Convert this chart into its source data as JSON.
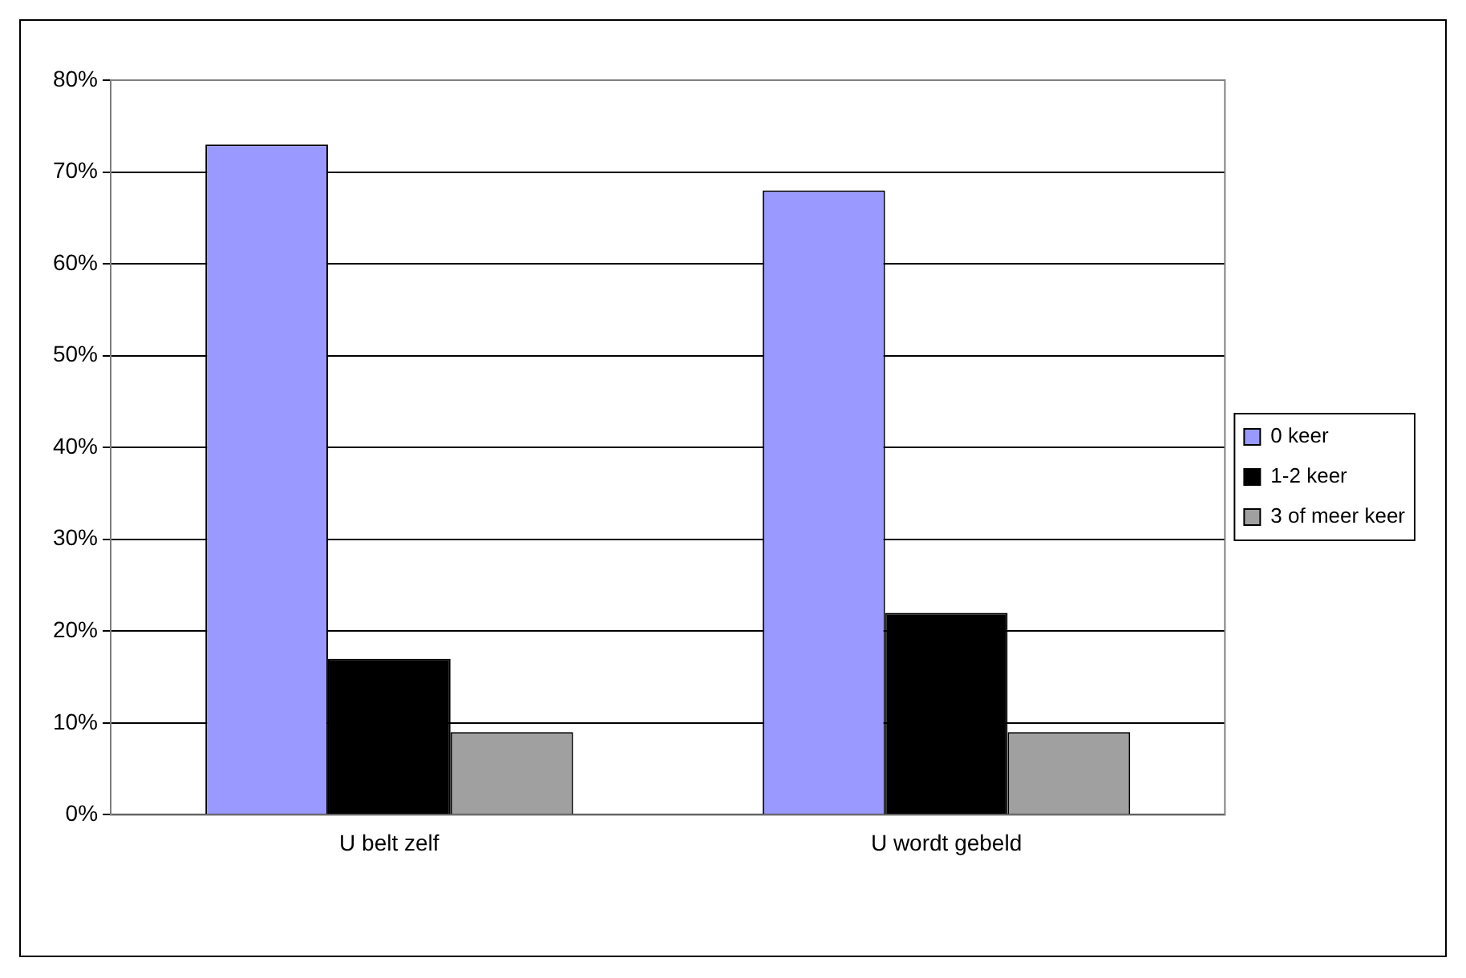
{
  "chart_data": {
    "type": "bar",
    "categories": [
      "U belt zelf",
      "U wordt gebeld"
    ],
    "series": [
      {
        "name": "0 keer",
        "color": "#9999ff",
        "values": [
          73,
          68
        ]
      },
      {
        "name": "1-2 keer",
        "color": "#000000",
        "values": [
          17,
          22
        ]
      },
      {
        "name": "3 of meer keer",
        "color": "#a0a0a0",
        "values": [
          9,
          9
        ]
      }
    ],
    "ylim": [
      0,
      80
    ],
    "yticks": [
      {
        "value": 0,
        "label": "0%"
      },
      {
        "value": 10,
        "label": "10%"
      },
      {
        "value": 20,
        "label": "20%"
      },
      {
        "value": 30,
        "label": "30%"
      },
      {
        "value": 40,
        "label": "40%"
      },
      {
        "value": 50,
        "label": "50%"
      },
      {
        "value": 60,
        "label": "60%"
      },
      {
        "value": 70,
        "label": "70%"
      },
      {
        "value": 80,
        "label": "80%"
      }
    ],
    "grid": "y",
    "legend": "right"
  }
}
